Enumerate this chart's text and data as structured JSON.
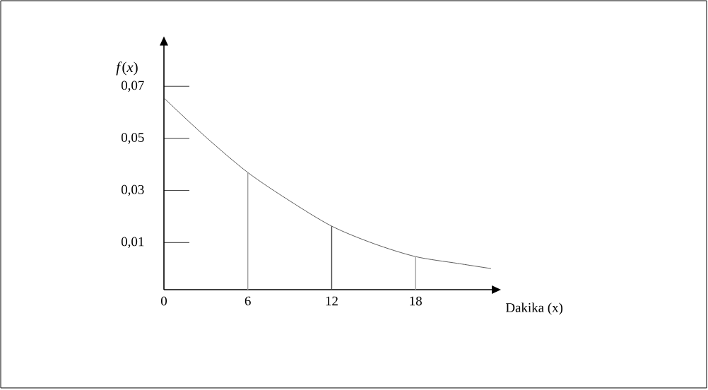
{
  "chart_data": {
    "type": "line",
    "xlabel": "Dakika (x)",
    "ylabel": "*f*(*x*)",
    "xlim": [
      0,
      23.5
    ],
    "ylim": [
      -0.0081,
      0.0859
    ],
    "xticks": [
      0,
      6,
      12,
      18
    ],
    "yticks": [
      {
        "value": 0.01,
        "label": "0,01"
      },
      {
        "value": 0.03,
        "label": "0,03"
      },
      {
        "value": 0.05,
        "label": "0,05"
      },
      {
        "value": 0.07,
        "label": "0,07"
      }
    ],
    "series": [
      {
        "color": "#333333",
        "x": [
          0,
          3,
          6,
          9,
          12,
          15,
          18,
          21,
          23.4
        ],
        "values": [
          0.0655,
          0.0505,
          0.0369,
          0.026,
          0.0163,
          0.0096,
          0.0046,
          0.002,
          0.0
        ]
      },
      {
        "color": "#a0a0a0",
        "x": [
          6,
          6
        ],
        "values": [
          -0.0081,
          0.0369
        ]
      },
      {
        "color": "#404040",
        "x": [
          12,
          12
        ],
        "values": [
          -0.0081,
          0.0163
        ]
      },
      {
        "color": "#a0a0a0",
        "x": [
          18,
          18
        ],
        "values": [
          -0.0081,
          0.0046
        ]
      }
    ]
  }
}
